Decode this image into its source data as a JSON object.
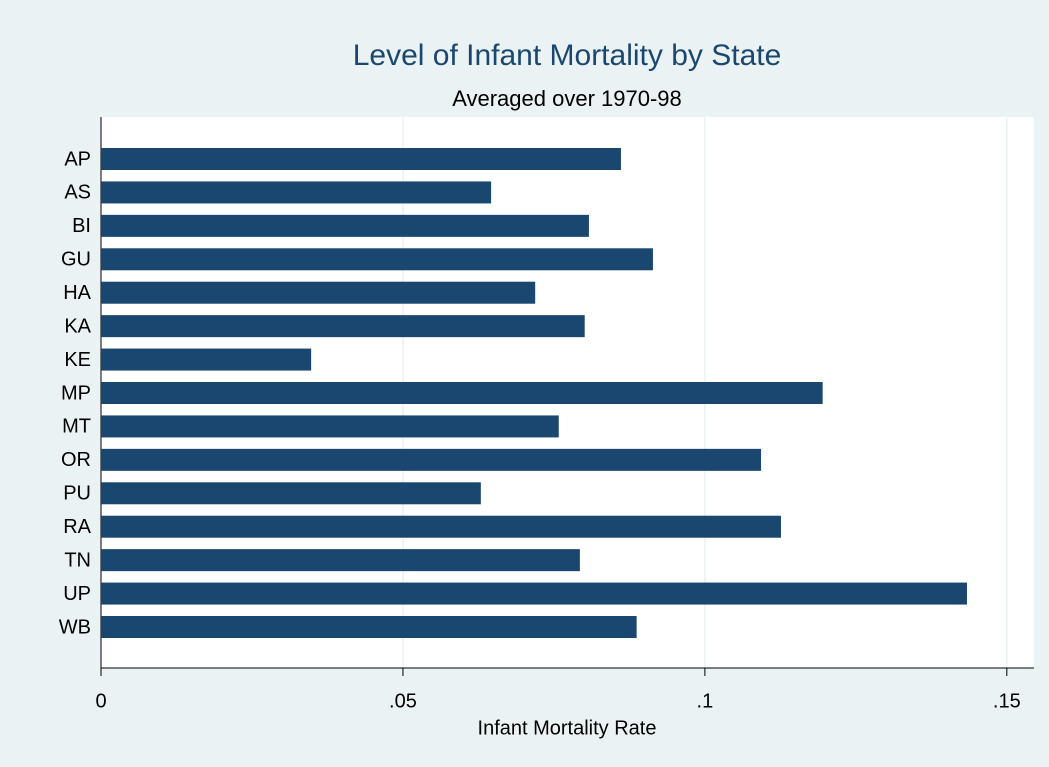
{
  "chart_data": {
    "type": "hbar",
    "title": "Level of Infant Mortality by State",
    "subtitle": "Averaged over 1970-98",
    "x_label": "Infant Mortality Rate",
    "categories": [
      "AP",
      "AS",
      "BI",
      "GU",
      "HA",
      "KA",
      "KE",
      "MP",
      "MT",
      "OR",
      "PU",
      "RA",
      "TN",
      "UP",
      "WB"
    ],
    "values": [
      0.0861,
      0.0646,
      0.0808,
      0.0914,
      0.0719,
      0.0801,
      0.0348,
      0.1195,
      0.0758,
      0.1093,
      0.0629,
      0.1126,
      0.0793,
      0.1434,
      0.0887
    ],
    "color": "#1a476f",
    "xlim": [
      0,
      0.1545
    ],
    "xticks": [
      0,
      {
        "value": 0.05,
        "label": ".05"
      },
      {
        "value": 0.1,
        "label": ".1"
      },
      {
        "value": 0.15,
        "label": ".15"
      }
    ],
    "grid": true
  }
}
